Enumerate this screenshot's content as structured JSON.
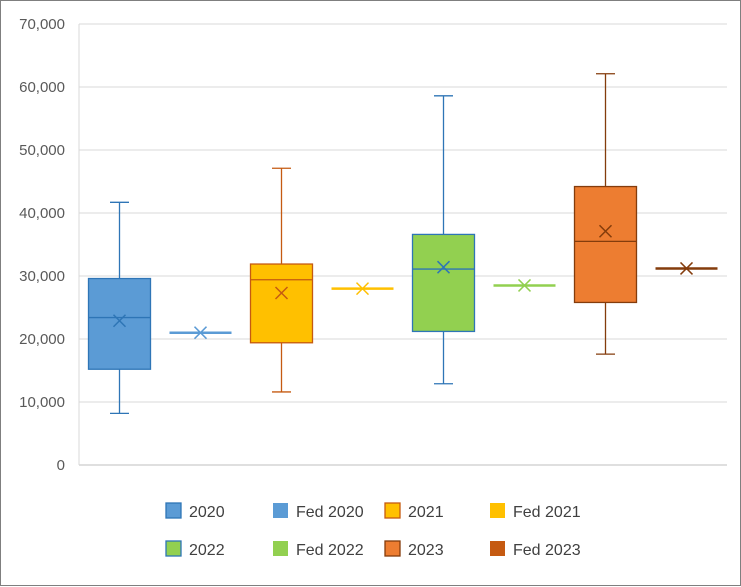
{
  "chart_data": {
    "type": "boxplot",
    "title": "",
    "xlabel": "",
    "ylabel": "",
    "ylim": [
      0,
      70000
    ],
    "yticks": [
      0,
      10000,
      20000,
      30000,
      40000,
      50000,
      60000,
      70000
    ],
    "ytick_labels": [
      "0",
      "10,000",
      "20,000",
      "30,000",
      "40,000",
      "50,000",
      "60,000",
      "70,000"
    ],
    "grid": true,
    "legend_position": "bottom",
    "series": [
      {
        "name": "2020",
        "kind": "box",
        "min": 8200,
        "q1": 15200,
        "median": 23400,
        "q3": 29600,
        "max": 41700,
        "mean": 22900,
        "fill": "#5b9bd5",
        "stroke": "#2e75b6"
      },
      {
        "name": "Fed 2020",
        "kind": "line",
        "value": 21000,
        "mean": 21000,
        "fill": "#5b9bd5",
        "stroke": "#5b9bd5"
      },
      {
        "name": "2021",
        "kind": "box",
        "min": 11600,
        "q1": 19400,
        "median": 29400,
        "q3": 31900,
        "max": 47100,
        "mean": 27300,
        "fill": "#ffc000",
        "stroke": "#c55a11"
      },
      {
        "name": "Fed 2021",
        "kind": "line",
        "value": 28000,
        "mean": 28000,
        "fill": "#ffc000",
        "stroke": "#ffc000"
      },
      {
        "name": "2022",
        "kind": "box",
        "min": 12900,
        "q1": 21200,
        "median": 31100,
        "q3": 36600,
        "max": 58600,
        "mean": 31400,
        "fill": "#92d050",
        "stroke": "#2e75b6"
      },
      {
        "name": "Fed 2022",
        "kind": "line",
        "value": 28500,
        "mean": 28500,
        "fill": "#92d050",
        "stroke": "#92d050"
      },
      {
        "name": "2023",
        "kind": "box",
        "min": 17600,
        "q1": 25800,
        "median": 35500,
        "q3": 44200,
        "max": 62100,
        "mean": 37100,
        "fill": "#ed7d31",
        "stroke": "#843c0c"
      },
      {
        "name": "Fed 2023",
        "kind": "line",
        "value": 31200,
        "mean": 31200,
        "fill": "#c55a11",
        "stroke": "#843c0c"
      }
    ]
  }
}
